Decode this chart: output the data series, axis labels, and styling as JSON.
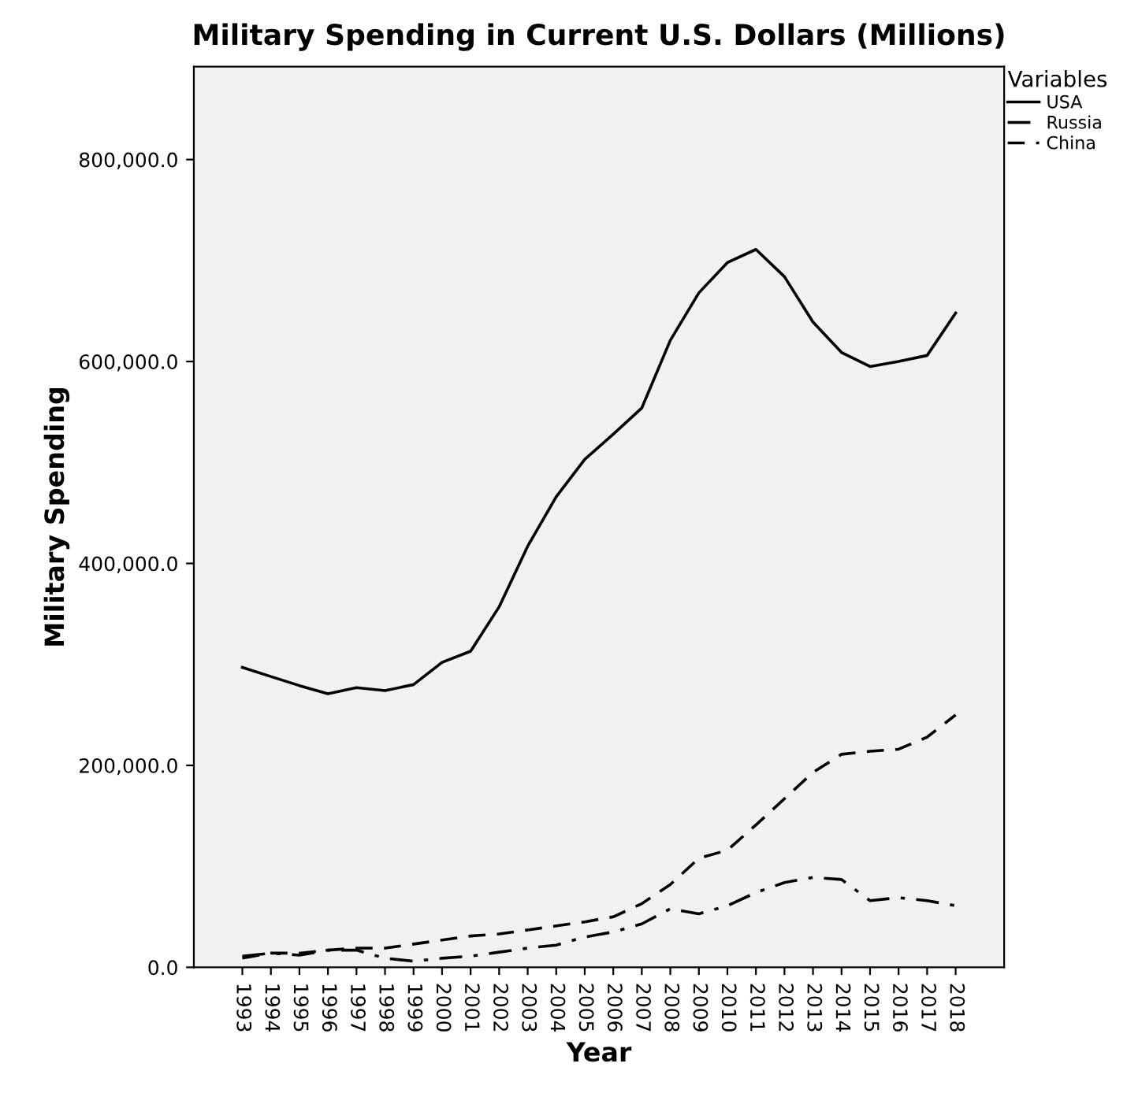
{
  "chart_data": {
    "type": "line",
    "title": "Military Spending in Current U.S. Dollars (Millions)",
    "xlabel": "Year",
    "ylabel": "Military Spending",
    "legend_title": "Variables",
    "legend": "top right",
    "grid": false,
    "categories": [
      "1993",
      "1994",
      "1995",
      "1996",
      "1997",
      "1998",
      "1999",
      "2000",
      "2001",
      "2002",
      "2003",
      "2004",
      "2005",
      "2006",
      "2007",
      "2008",
      "2009",
      "2010",
      "2011",
      "2012",
      "2013",
      "2014",
      "2015",
      "2016",
      "2017",
      "2018"
    ],
    "ylim": [
      0,
      892000
    ],
    "yticks": [
      {
        "value": 0,
        "label": "0.0"
      },
      {
        "value": 200000,
        "label": "200,000.0"
      },
      {
        "value": 400000,
        "label": "400,000.0"
      },
      {
        "value": 600000,
        "label": "600,000.0"
      },
      {
        "value": 800000,
        "label": "800,000.0"
      }
    ],
    "series": [
      {
        "name": "USA",
        "color": "#000000",
        "line_style": "solid",
        "values": [
          297000,
          288000,
          279000,
          271000,
          277000,
          274000,
          280000,
          302000,
          313000,
          357000,
          417000,
          466000,
          503000,
          528000,
          554000,
          621000,
          668000,
          698000,
          711000,
          684000,
          639000,
          609000,
          595000,
          600000,
          606000,
          648000
        ]
      },
      {
        "name": "Russia",
        "color": "#000000",
        "line_style": "dashdot",
        "values": [
          11000,
          14000,
          12000,
          17000,
          17000,
          9000,
          6000,
          9000,
          11000,
          15000,
          19000,
          22000,
          30000,
          35000,
          43000,
          58000,
          53000,
          61000,
          74000,
          84000,
          89000,
          87000,
          66000,
          69000,
          66000,
          61000
        ]
      },
      {
        "name": "China",
        "color": "#000000",
        "line_style": "dashed",
        "values": [
          9000,
          14000,
          14000,
          17000,
          19000,
          19000,
          23000,
          27000,
          31000,
          33000,
          37000,
          41000,
          45000,
          50000,
          63000,
          82000,
          108000,
          116000,
          141000,
          167000,
          193000,
          211000,
          214000,
          216000,
          228000,
          250000
        ]
      }
    ]
  }
}
